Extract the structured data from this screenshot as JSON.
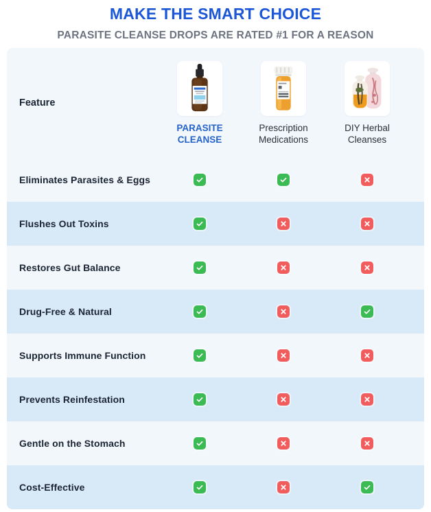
{
  "header": {
    "title": "MAKE THE SMART CHOICE",
    "subtitle": "PARASITE CLEANSE DROPS ARE RATED #1 FOR A REASON"
  },
  "table": {
    "feature_header": "Feature",
    "columns": [
      {
        "label_line1": "PARASITE",
        "label_line2": "CLEANSE",
        "highlight": true,
        "image": "dropper-bottle"
      },
      {
        "label_line1": "Prescription",
        "label_line2": "Medications",
        "highlight": false,
        "image": "pill-bottle"
      },
      {
        "label_line1": "DIY Herbal",
        "label_line2": "Cleanses",
        "highlight": false,
        "image": "herbal-jars"
      }
    ],
    "rows": [
      {
        "feature": "Eliminates Parasites & Eggs",
        "values": [
          "check",
          "check",
          "cross"
        ]
      },
      {
        "feature": "Flushes Out Toxins",
        "values": [
          "check",
          "cross",
          "cross"
        ]
      },
      {
        "feature": "Restores Gut Balance",
        "values": [
          "check",
          "cross",
          "cross"
        ]
      },
      {
        "feature": "Drug-Free & Natural",
        "values": [
          "check",
          "cross",
          "check"
        ]
      },
      {
        "feature": "Supports Immune Function",
        "values": [
          "check",
          "cross",
          "cross"
        ]
      },
      {
        "feature": "Prevents Reinfestation",
        "values": [
          "check",
          "cross",
          "cross"
        ]
      },
      {
        "feature": "Gentle on the Stomach",
        "values": [
          "check",
          "cross",
          "cross"
        ]
      },
      {
        "feature": "Cost-Effective",
        "values": [
          "check",
          "cross",
          "check"
        ]
      }
    ]
  },
  "colors": {
    "accent_blue": "#1b57d6",
    "highlight_label_blue": "#2563c9",
    "subtitle_gray": "#6d7480",
    "row_blue": "#d8e9f8",
    "card_bg": "#f2f7fc",
    "check_green": "#3cba54",
    "cross_red": "#f15d5d"
  },
  "chart_data": {
    "type": "table",
    "title": "MAKE THE SMART CHOICE",
    "subtitle": "PARASITE CLEANSE DROPS ARE RATED #1 FOR A REASON",
    "columns": [
      "Feature",
      "PARASITE CLEANSE",
      "Prescription Medications",
      "DIY Herbal Cleanses"
    ],
    "rows": [
      [
        "Eliminates Parasites & Eggs",
        true,
        true,
        false
      ],
      [
        "Flushes Out Toxins",
        true,
        false,
        false
      ],
      [
        "Restores Gut Balance",
        true,
        false,
        false
      ],
      [
        "Drug-Free & Natural",
        true,
        false,
        true
      ],
      [
        "Supports Immune Function",
        true,
        false,
        false
      ],
      [
        "Prevents Reinfestation",
        true,
        false,
        false
      ],
      [
        "Gentle on the Stomach",
        true,
        false,
        false
      ],
      [
        "Cost-Effective",
        true,
        false,
        true
      ]
    ],
    "legend": {
      "check": "included",
      "cross": "not included"
    },
    "layout": {
      "alternating_row_shading": true,
      "highlight_column": "PARASITE CLEANSE"
    }
  }
}
